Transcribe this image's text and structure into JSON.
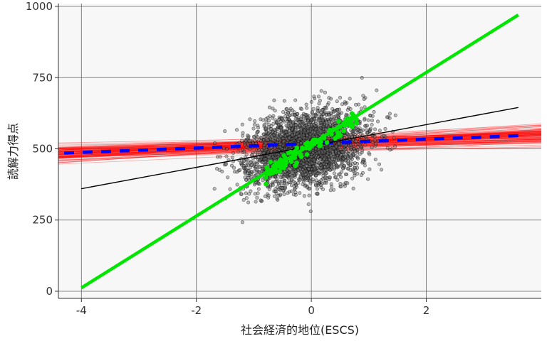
{
  "chart_data": {
    "type": "scatter",
    "title": "",
    "xlabel": "社会経済的地位(ESCS)",
    "ylabel": "読解力得点",
    "xlim": [
      -4.4,
      4.0
    ],
    "ylim": [
      -25,
      1010
    ],
    "x_ticks": [
      "-4",
      "-2",
      "0",
      "2"
    ],
    "x_tick_values": [
      -4,
      -2,
      0,
      2
    ],
    "y_ticks": [
      "0",
      "250",
      "500",
      "750",
      "1000"
    ],
    "y_tick_values": [
      0,
      250,
      500,
      750,
      1000
    ],
    "grid": true,
    "panel_background": "#f7f7f7",
    "grid_color": "#666666",
    "series": [
      {
        "kind": "student-points",
        "color": "#000000",
        "description": "Individual students (semi-transparent black points)",
        "center": [
          -0.1,
          500
        ],
        "sd": [
          0.75,
          95
        ],
        "count": 3000,
        "correlation": 0.3
      },
      {
        "kind": "school-lines",
        "color": "#ff0000",
        "count": 100,
        "x_range": [
          -4.4,
          4.0
        ],
        "mean_intercept": 520,
        "mean_slope": 7,
        "intercept_sd": 18,
        "slope_sd": 4
      },
      {
        "kind": "within-school-regression",
        "color": "#0000ff",
        "style": "dashed",
        "x": [
          -4.3,
          3.7
        ],
        "y": [
          485,
          547
        ]
      },
      {
        "kind": "overall-regression",
        "color": "#000000",
        "style": "solid",
        "x": [
          -4.0,
          3.6
        ],
        "y": [
          360,
          645
        ]
      },
      {
        "kind": "between-school-regression",
        "color": "#00e600",
        "style": "solid",
        "x": [
          -4.0,
          3.6
        ],
        "y": [
          12,
          970
        ]
      },
      {
        "kind": "school-means",
        "color": "#00e600",
        "count": 120,
        "x_range": [
          -0.8,
          0.8
        ],
        "center": [
          -0.1,
          500
        ],
        "slope": 126,
        "noise_sd": 20
      }
    ]
  }
}
